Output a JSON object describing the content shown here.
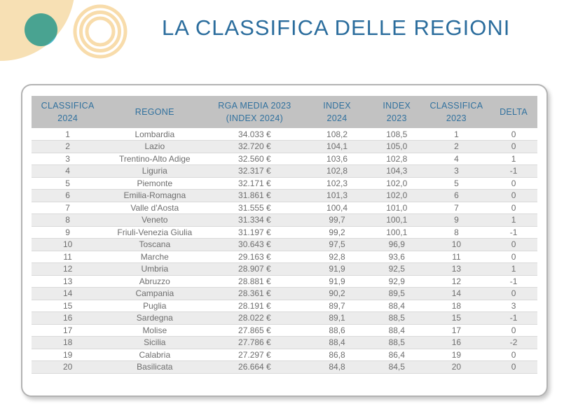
{
  "title": "LA CLASSIFICA DELLE REGIONI",
  "colors": {
    "title-color": "#2b6d9d",
    "header-text": "#31719e",
    "header-bg": "#c2c2c2",
    "row-alt-bg": "#ececec",
    "row-text": "#6e6e6e",
    "teal": "#41b6cb",
    "tan": "#f7e0b4",
    "rings": "#f8dcab"
  },
  "table": {
    "headers": [
      "CLASSIFICA\n2024",
      "REGONE",
      "RGA MEDIA 2023\n(INDEX 2024)",
      "INDEX\n2024",
      "INDEX\n2023",
      "CLASSIFICA\n2023",
      "DELTA"
    ],
    "rows": [
      [
        "1",
        "Lombardia",
        "34.033 €",
        "108,2",
        "108,5",
        "1",
        "0"
      ],
      [
        "2",
        "Lazio",
        "32.720 €",
        "104,1",
        "105,0",
        "2",
        "0"
      ],
      [
        "3",
        "Trentino-Alto Adige",
        "32.560 €",
        "103,6",
        "102,8",
        "4",
        "1"
      ],
      [
        "4",
        "Liguria",
        "32.317 €",
        "102,8",
        "104,3",
        "3",
        "-1"
      ],
      [
        "5",
        "Piemonte",
        "32.171 €",
        "102,3",
        "102,0",
        "5",
        "0"
      ],
      [
        "6",
        "Emilia-Romagna",
        "31.861 €",
        "101,3",
        "102,0",
        "6",
        "0"
      ],
      [
        "7",
        "Valle d'Aosta",
        "31.555 €",
        "100,4",
        "101,0",
        "7",
        "0"
      ],
      [
        "8",
        "Veneto",
        "31.334 €",
        "99,7",
        "100,1",
        "9",
        "1"
      ],
      [
        "9",
        "Friuli-Venezia Giulia",
        "31.197 €",
        "99,2",
        "100,1",
        "8",
        "-1"
      ],
      [
        "10",
        "Toscana",
        "30.643 €",
        "97,5",
        "96,9",
        "10",
        "0"
      ],
      [
        "11",
        "Marche",
        "29.163 €",
        "92,8",
        "93,6",
        "11",
        "0"
      ],
      [
        "12",
        "Umbria",
        "28.907 €",
        "91,9",
        "92,5",
        "13",
        "1"
      ],
      [
        "13",
        "Abruzzo",
        "28.881 €",
        "91,9",
        "92,9",
        "12",
        "-1"
      ],
      [
        "14",
        "Campania",
        "28.361 €",
        "90,2",
        "89,5",
        "14",
        "0"
      ],
      [
        "15",
        "Puglia",
        "28.191 €",
        "89,7",
        "88,4",
        "18",
        "3"
      ],
      [
        "16",
        "Sardegna",
        "28.022 €",
        "89,1",
        "88,5",
        "15",
        "-1"
      ],
      [
        "17",
        "Molise",
        "27.865 €",
        "88,6",
        "88,4",
        "17",
        "0"
      ],
      [
        "18",
        "Sicilia",
        "27.786 €",
        "88,4",
        "88,5",
        "16",
        "-2"
      ],
      [
        "19",
        "Calabria",
        "27.297 €",
        "86,8",
        "86,4",
        "19",
        "0"
      ],
      [
        "20",
        "Basilicata",
        "26.664 €",
        "84,8",
        "84,5",
        "20",
        "0"
      ]
    ]
  }
}
